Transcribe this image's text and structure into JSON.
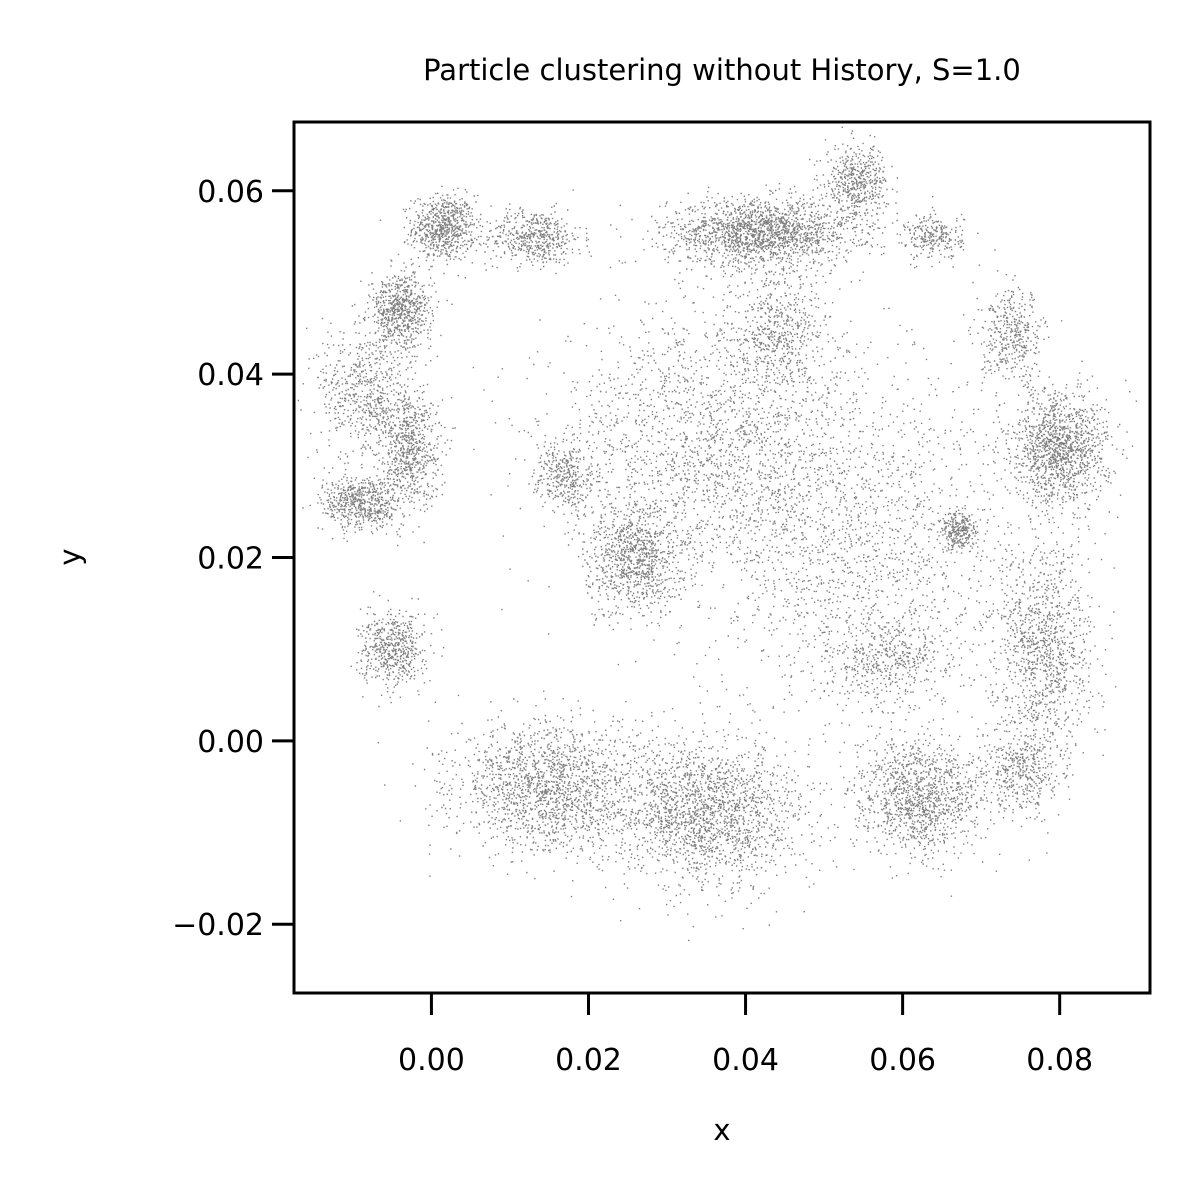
{
  "chart_data": {
    "type": "scatter",
    "title": "Particle clustering without History, S=1.0",
    "xlabel": "x",
    "ylabel": "y",
    "xlim": [
      -0.0175,
      0.0915
    ],
    "ylim": [
      -0.0275,
      0.0675
    ],
    "xticks": [
      0.0,
      0.02,
      0.04,
      0.06,
      0.08
    ],
    "xtick_labels": [
      "0.00",
      "0.02",
      "0.04",
      "0.06",
      "0.08"
    ],
    "yticks": [
      -0.02,
      0.0,
      0.02,
      0.04,
      0.06
    ],
    "ytick_labels": [
      "−0.02",
      "0.00",
      "0.02",
      "0.04",
      "0.06"
    ],
    "grid": false,
    "legend": "none",
    "marker_color": "#7f7f7f",
    "axes_color": "#000000",
    "series": [
      {
        "clusters": [
          {
            "cx": 0.0015,
            "cy": 0.056,
            "sx": 0.002,
            "sy": 0.0018,
            "n": 700
          },
          {
            "cx": 0.013,
            "cy": 0.055,
            "sx": 0.003,
            "sy": 0.0015,
            "n": 500
          },
          {
            "cx": 0.042,
            "cy": 0.0555,
            "sx": 0.006,
            "sy": 0.0018,
            "n": 1800
          },
          {
            "cx": 0.054,
            "cy": 0.061,
            "sx": 0.002,
            "sy": 0.002,
            "n": 500
          },
          {
            "cx": 0.064,
            "cy": 0.055,
            "sx": 0.0018,
            "sy": 0.0012,
            "n": 250
          },
          {
            "cx": -0.004,
            "cy": 0.047,
            "sx": 0.002,
            "sy": 0.002,
            "n": 700
          },
          {
            "cx": -0.0085,
            "cy": 0.038,
            "sx": 0.003,
            "sy": 0.0035,
            "n": 600
          },
          {
            "cx": -0.003,
            "cy": 0.032,
            "sx": 0.002,
            "sy": 0.003,
            "n": 700
          },
          {
            "cx": -0.009,
            "cy": 0.026,
            "sx": 0.0025,
            "sy": 0.0015,
            "n": 600
          },
          {
            "cx": -0.005,
            "cy": 0.01,
            "sx": 0.002,
            "sy": 0.002,
            "n": 550
          },
          {
            "cx": 0.08,
            "cy": 0.032,
            "sx": 0.003,
            "sy": 0.003,
            "n": 1300
          },
          {
            "cx": 0.074,
            "cy": 0.044,
            "sx": 0.002,
            "sy": 0.0025,
            "n": 400
          },
          {
            "cx": 0.078,
            "cy": 0.01,
            "sx": 0.003,
            "sy": 0.006,
            "n": 1100
          },
          {
            "cx": 0.075,
            "cy": -0.003,
            "sx": 0.0025,
            "sy": 0.0025,
            "n": 400
          },
          {
            "cx": 0.015,
            "cy": -0.005,
            "sx": 0.006,
            "sy": 0.0035,
            "n": 1700
          },
          {
            "cx": 0.035,
            "cy": -0.008,
            "sx": 0.006,
            "sy": 0.004,
            "n": 1900
          },
          {
            "cx": 0.062,
            "cy": -0.006,
            "sx": 0.004,
            "sy": 0.003,
            "n": 1200
          },
          {
            "cx": 0.026,
            "cy": 0.02,
            "sx": 0.003,
            "sy": 0.003,
            "n": 900
          },
          {
            "cx": 0.036,
            "cy": 0.032,
            "sx": 0.01,
            "sy": 0.008,
            "n": 2200
          },
          {
            "cx": 0.056,
            "cy": 0.02,
            "sx": 0.01,
            "sy": 0.01,
            "n": 1600
          },
          {
            "cx": 0.067,
            "cy": 0.023,
            "sx": 0.001,
            "sy": 0.001,
            "n": 250
          },
          {
            "cx": 0.044,
            "cy": 0.045,
            "sx": 0.003,
            "sy": 0.003,
            "n": 500
          },
          {
            "cx": 0.017,
            "cy": 0.029,
            "sx": 0.002,
            "sy": 0.002,
            "n": 350
          },
          {
            "cx": 0.058,
            "cy": 0.009,
            "sx": 0.004,
            "sy": 0.002,
            "n": 400
          }
        ]
      }
    ]
  }
}
